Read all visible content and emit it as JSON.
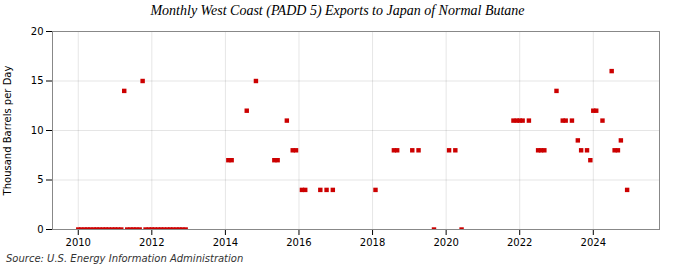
{
  "chart_data": {
    "type": "scatter",
    "title": "Monthly West Coast (PADD 5) Exports to Japan of Normal Butane",
    "ylabel": "Thousand Barrels per Day",
    "source": "Source: U.S. Energy Information Administration",
    "color": "#cc0000",
    "marker": "square",
    "grid": true,
    "xlim": [
      2009.3,
      2025.8
    ],
    "xticks": [
      2010,
      2012,
      2014,
      2016,
      2018,
      2020,
      2022,
      2024
    ],
    "ylim": [
      0,
      20
    ],
    "yticks": [
      0,
      5,
      10,
      15,
      20
    ],
    "x": [
      2010.0,
      2010.08,
      2010.17,
      2010.25,
      2010.33,
      2010.42,
      2010.5,
      2010.58,
      2010.67,
      2010.75,
      2010.83,
      2010.92,
      2011.0,
      2011.08,
      2011.17,
      2011.25,
      2011.33,
      2011.42,
      2011.5,
      2011.58,
      2011.67,
      2011.75,
      2011.83,
      2011.92,
      2012.0,
      2012.08,
      2012.17,
      2012.25,
      2012.33,
      2012.42,
      2012.5,
      2012.58,
      2012.67,
      2012.75,
      2012.83,
      2012.92,
      2014.08,
      2014.17,
      2014.58,
      2014.83,
      2015.33,
      2015.42,
      2015.67,
      2015.83,
      2015.92,
      2016.08,
      2016.17,
      2016.58,
      2016.75,
      2016.92,
      2018.08,
      2018.58,
      2018.67,
      2019.08,
      2019.25,
      2019.67,
      2020.08,
      2020.25,
      2020.42,
      2021.83,
      2021.92,
      2022.0,
      2022.08,
      2022.25,
      2022.5,
      2022.58,
      2022.67,
      2023.0,
      2023.17,
      2023.25,
      2023.42,
      2023.58,
      2023.67,
      2023.83,
      2023.92,
      2024.0,
      2024.08,
      2024.25,
      2024.5,
      2024.58,
      2024.67,
      2024.75,
      2024.92
    ],
    "values": [
      0,
      0,
      0,
      0,
      0,
      0,
      0,
      0,
      0,
      0,
      0,
      0,
      0,
      0,
      0,
      14,
      0,
      0,
      0,
      0,
      0,
      15,
      0,
      0,
      0,
      0,
      0,
      0,
      0,
      0,
      0,
      0,
      0,
      0,
      0,
      0,
      7,
      7,
      12,
      15,
      7,
      7,
      11,
      8,
      8,
      4,
      4,
      4,
      4,
      4,
      4,
      8,
      8,
      8,
      8,
      0,
      8,
      8,
      0,
      11,
      11,
      11,
      11,
      11,
      8,
      8,
      8,
      14,
      11,
      11,
      11,
      9,
      8,
      8,
      7,
      12,
      12,
      11,
      16,
      8,
      8,
      9,
      4
    ]
  }
}
